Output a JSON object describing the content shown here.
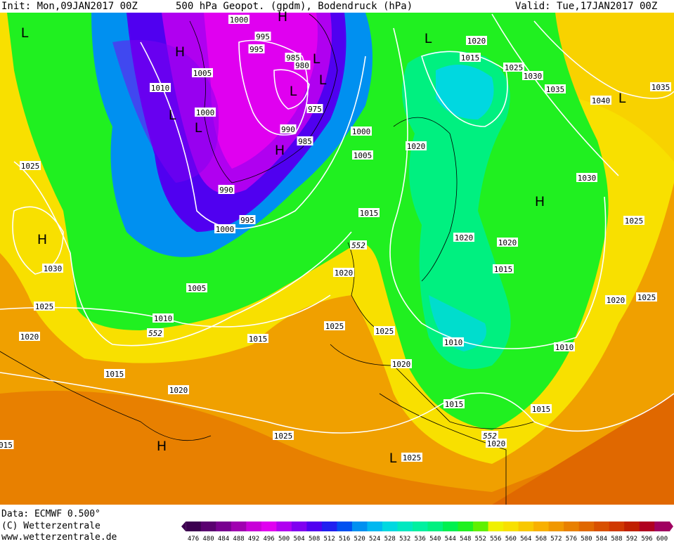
{
  "header": {
    "init": "Init: Mon,09JAN2017 00Z",
    "title": "500 hPa Geopot. (gpdm), Bodendruck (hPa)",
    "valid": "Valid: Tue,17JAN2017 00Z"
  },
  "footer": {
    "data": "Data: ECMWF  0.500°",
    "copyright": "(C) Wetterzentrale",
    "url": "www.wetterzentrale.de"
  },
  "map": {
    "pressure_labels": [
      "1000",
      "995",
      "995",
      "985",
      "980",
      "975",
      "990",
      "985",
      "990",
      "995",
      "1000",
      "1005",
      "1010",
      "1000",
      "1000",
      "1005",
      "1015",
      "1020",
      "1020",
      "1015",
      "1025",
      "1030",
      "1035",
      "1040",
      "1035",
      "1030",
      "1025",
      "1020",
      "1020",
      "1015",
      "1020",
      "1025",
      "1010",
      "1010",
      "1015",
      "1015",
      "1020",
      "1025",
      "1025",
      "1020",
      "1015",
      "1015",
      "1025",
      "1025",
      "1020",
      "1020",
      "1005",
      "1010",
      "1020",
      "1025",
      "1030",
      "1025",
      "015"
    ],
    "height_labels": [
      "552",
      "552",
      "552"
    ],
    "centers": [
      "L",
      "H",
      "H",
      "L",
      "L",
      "H",
      "L",
      "L",
      "L",
      "H",
      "L",
      "H",
      "H",
      "L",
      "L"
    ]
  },
  "colorbar": {
    "labels": [
      "476",
      "480",
      "484",
      "488",
      "492",
      "496",
      "500",
      "504",
      "508",
      "512",
      "516",
      "520",
      "524",
      "528",
      "532",
      "536",
      "540",
      "544",
      "548",
      "552",
      "556",
      "560",
      "564",
      "568",
      "572",
      "576",
      "580",
      "584",
      "588",
      "592",
      "596",
      "600"
    ],
    "colors": [
      "#3c0050",
      "#5a0070",
      "#780090",
      "#a000b0",
      "#c800d8",
      "#e000f0",
      "#b000f0",
      "#8000f0",
      "#5000f0",
      "#2020f0",
      "#0050f0",
      "#0090f0",
      "#00b8f0",
      "#00d8e0",
      "#00e8c0",
      "#00f0a0",
      "#00f080",
      "#00f050",
      "#20f020",
      "#60f000",
      "#f0f000",
      "#f8e000",
      "#f8c800",
      "#f8b000",
      "#f09800",
      "#e88000",
      "#e06800",
      "#d85000",
      "#d03800",
      "#c02000",
      "#b00020",
      "#a00060"
    ]
  }
}
